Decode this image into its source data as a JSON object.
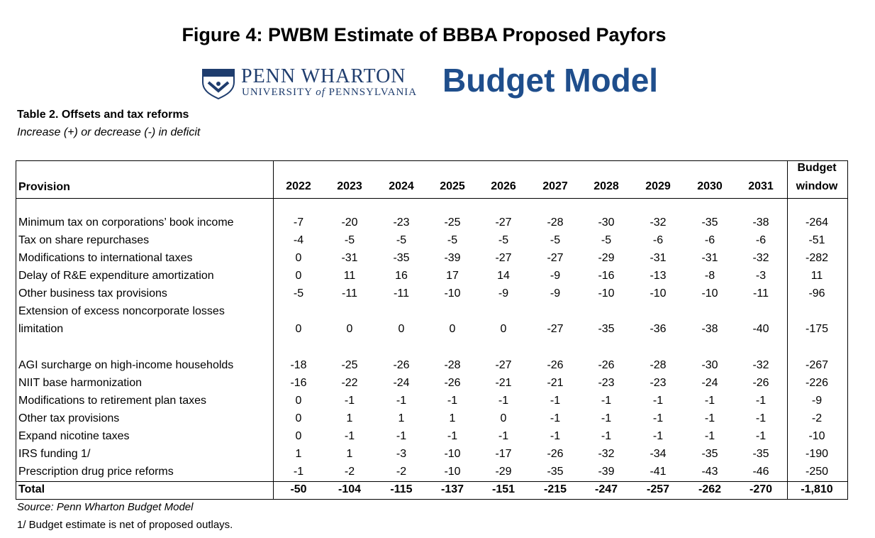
{
  "header": {
    "title": "Figure 4: PWBM Estimate of BBBA Proposed Payfors",
    "logo": {
      "name": "PENN WHARTON",
      "university": "UNIVERSITY",
      "of": "of",
      "state": "PENNSYLVANIA",
      "brand": "Budget Model"
    }
  },
  "table": {
    "caption": "Table 2. Offsets and tax reforms",
    "subtitle": "Increase (+) or decrease (-) in deficit",
    "columns": [
      "Provision",
      "2022",
      "2023",
      "2024",
      "2025",
      "2026",
      "2027",
      "2028",
      "2029",
      "2030",
      "2031",
      "Budget window"
    ],
    "rows": [
      {
        "label": "Minimum tax on corporations’ book income",
        "cells": [
          -7,
          -20,
          -23,
          -25,
          -27,
          -28,
          -30,
          -32,
          -35,
          -38,
          -264
        ]
      },
      {
        "label": "Tax on share repurchases",
        "cells": [
          -4,
          -5,
          -5,
          -5,
          -5,
          -5,
          -5,
          -6,
          -6,
          -6,
          -51
        ]
      },
      {
        "label": "Modifications to international taxes",
        "cells": [
          0,
          -31,
          -35,
          -39,
          -27,
          -27,
          -29,
          -31,
          -31,
          -32,
          -282
        ]
      },
      {
        "label": "Delay of R&E expenditure amortization",
        "cells": [
          0,
          11,
          16,
          17,
          14,
          -9,
          -16,
          -13,
          -8,
          -3,
          11
        ]
      },
      {
        "label": "Other business tax provisions",
        "cells": [
          -5,
          -11,
          -11,
          -10,
          -9,
          -9,
          -10,
          -10,
          -10,
          -11,
          -96
        ]
      },
      {
        "label": "Extension of excess noncorporate losses limitation",
        "cells": [
          0,
          0,
          0,
          0,
          0,
          -27,
          -35,
          -36,
          -38,
          -40,
          -175
        ]
      },
      {
        "label": "AGI surcharge on high-income households",
        "cells": [
          -18,
          -25,
          -26,
          -28,
          -27,
          -26,
          -26,
          -28,
          -30,
          -32,
          -267
        ]
      },
      {
        "label": "NIIT base harmonization",
        "cells": [
          -16,
          -22,
          -24,
          -26,
          -21,
          -21,
          -23,
          -23,
          -24,
          -26,
          -226
        ]
      },
      {
        "label": "Modifications to retirement plan taxes",
        "cells": [
          0,
          -1,
          -1,
          -1,
          -1,
          -1,
          -1,
          -1,
          -1,
          -1,
          -9
        ]
      },
      {
        "label": "Other tax provisions",
        "cells": [
          0,
          1,
          1,
          1,
          0,
          -1,
          -1,
          -1,
          -1,
          -1,
          -2
        ]
      },
      {
        "label": "Expand nicotine taxes",
        "cells": [
          0,
          -1,
          -1,
          -1,
          -1,
          -1,
          -1,
          -1,
          -1,
          -1,
          -10
        ]
      },
      {
        "label": "IRS funding 1/",
        "cells": [
          1,
          1,
          -3,
          -10,
          -17,
          -26,
          -32,
          -34,
          -35,
          -35,
          -190
        ]
      },
      {
        "label": "Prescription drug price reforms",
        "cells": [
          -1,
          -2,
          -2,
          -10,
          -29,
          -35,
          -39,
          -41,
          -43,
          -46,
          -250
        ]
      }
    ],
    "total": {
      "label": "Total",
      "cells": [
        -50,
        -104,
        -115,
        -137,
        -151,
        -215,
        -247,
        -257,
        -262,
        -270,
        "-1,810"
      ]
    }
  },
  "notes": {
    "source": "Source: Penn Wharton Budget Model",
    "footnote": "1/ Budget estimate is net of proposed outlays."
  }
}
